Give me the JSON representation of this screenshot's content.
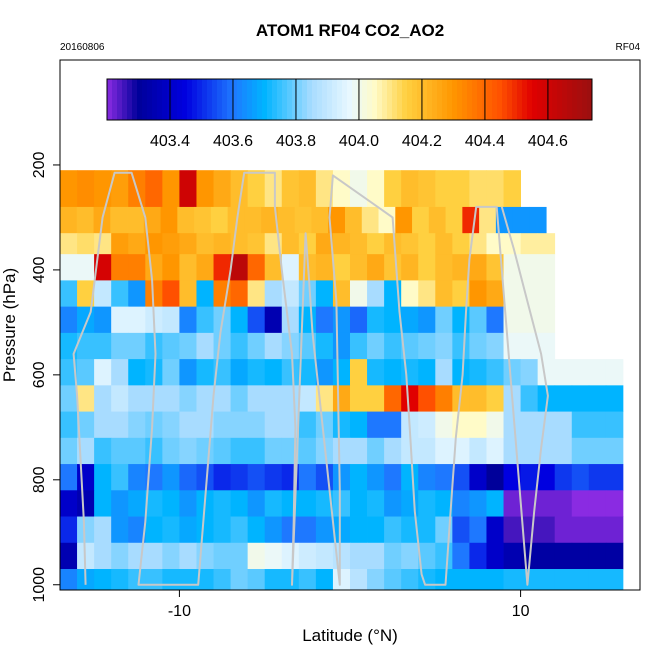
{
  "chart_data": {
    "type": "heatmap",
    "title": "ATOM1 RF04 CO2_AO2",
    "date_label": "20160806",
    "flight_label": "RF04",
    "xlabel": "Latitude (°N)",
    "ylabel": "Pressure (hPa)",
    "xlim": [
      -17,
      17
    ],
    "ylim": [
      1010,
      0
    ],
    "x_ticks": [
      -10,
      10
    ],
    "x_tick_labels": [
      "-10",
      "10"
    ],
    "y_ticks": [
      1000,
      800,
      600,
      400,
      200
    ],
    "y_tick_labels": [
      "1000",
      "800",
      "600",
      "400",
      "200"
    ],
    "colorbar": {
      "range": [
        403.2,
        404.74
      ],
      "ticks": [
        403.4,
        403.6,
        403.8,
        404.0,
        404.2,
        404.4,
        404.6
      ],
      "tick_labels": [
        "403.4",
        "403.6",
        "403.8",
        "404.0",
        "404.2",
        "404.4",
        "404.6"
      ],
      "stops": [
        {
          "v": 403.2,
          "c": "#8a2be2"
        },
        {
          "v": 403.3,
          "c": "#00009a"
        },
        {
          "v": 403.45,
          "c": "#0000e0"
        },
        {
          "v": 403.6,
          "c": "#1e78ff"
        },
        {
          "v": 403.7,
          "c": "#00b4ff"
        },
        {
          "v": 403.85,
          "c": "#a8dcff"
        },
        {
          "v": 403.97,
          "c": "#e8f8ff"
        },
        {
          "v": 404.05,
          "c": "#fffbc8"
        },
        {
          "v": 404.15,
          "c": "#ffd040"
        },
        {
          "v": 404.3,
          "c": "#ff9600"
        },
        {
          "v": 404.45,
          "c": "#ff5000"
        },
        {
          "v": 404.55,
          "c": "#e00000"
        },
        {
          "v": 404.74,
          "c": "#9a1010"
        }
      ]
    },
    "rows": [
      {
        "p0": 210,
        "p1": 280,
        "x0": -17,
        "x1": 10,
        "values": [
          404.3,
          404.32,
          404.3,
          404.28,
          404.35,
          404.4,
          404.3,
          404.6,
          404.3,
          404.25,
          404.2,
          404.15,
          404.1,
          404.18,
          404.2,
          404.1,
          404.05,
          404.0,
          404.05,
          404.15,
          404.2,
          404.18,
          404.15,
          404.15,
          404.12,
          404.12,
          404.15
        ]
      },
      {
        "p0": 280,
        "p1": 330,
        "x0": -17,
        "x1": 11.5,
        "values": [
          404.22,
          404.2,
          404.25,
          404.2,
          404.2,
          404.25,
          404.3,
          404.2,
          404.18,
          404.15,
          404.2,
          404.2,
          404.22,
          404.2,
          404.18,
          404.2,
          404.3,
          404.2,
          404.1,
          404.05,
          404.3,
          404.15,
          404.2,
          404.15,
          404.5,
          404.1,
          403.65,
          403.65,
          403.65
        ]
      },
      {
        "p0": 330,
        "p1": 370,
        "x0": -17,
        "x1": 12,
        "values": [
          404.1,
          404.12,
          404.1,
          404.28,
          404.25,
          404.3,
          404.28,
          404.25,
          404.2,
          404.22,
          404.2,
          404.18,
          404.1,
          404.2,
          404.15,
          404.25,
          404.22,
          404.2,
          404.15,
          404.2,
          404.18,
          404.15,
          404.2,
          404.15,
          404.1,
          404.05,
          404.05,
          404.08,
          404.08
        ]
      },
      {
        "p0": 370,
        "p1": 420,
        "x0": -17,
        "x1": 12,
        "values": [
          403.98,
          403.98,
          404.58,
          404.35,
          404.35,
          404.25,
          404.3,
          404.2,
          404.25,
          404.5,
          404.65,
          404.4,
          404.2,
          403.95,
          404.2,
          404.22,
          404.15,
          404.2,
          404.25,
          404.18,
          404.22,
          404.15,
          404.2,
          404.22,
          404.25,
          404.18,
          404.0,
          404.0,
          404.0
        ]
      },
      {
        "p0": 420,
        "p1": 470,
        "x0": -17,
        "x1": 12,
        "values": [
          403.75,
          404.15,
          403.9,
          403.75,
          403.65,
          404.35,
          404.45,
          404.2,
          403.7,
          404.35,
          404.4,
          404.1,
          403.85,
          403.9,
          403.8,
          403.7,
          404.2,
          404.0,
          403.85,
          403.7,
          404.05,
          404.1,
          404.2,
          404.15,
          404.3,
          404.25,
          404.0,
          404.0,
          404.0
        ]
      },
      {
        "p0": 470,
        "p1": 520,
        "x0": -17,
        "x1": 12,
        "values": [
          403.62,
          403.68,
          403.65,
          403.95,
          403.95,
          403.92,
          403.9,
          403.62,
          403.75,
          403.8,
          403.7,
          403.55,
          403.35,
          403.85,
          403.7,
          403.6,
          403.65,
          403.58,
          403.72,
          403.7,
          403.68,
          403.65,
          403.8,
          403.7,
          403.78,
          403.6,
          404.0,
          404.0,
          404.0
        ]
      },
      {
        "p0": 520,
        "p1": 570,
        "x0": -17,
        "x1": 12,
        "values": [
          403.72,
          403.75,
          403.75,
          403.8,
          403.8,
          403.75,
          403.78,
          403.8,
          403.85,
          403.8,
          403.75,
          403.8,
          403.85,
          403.82,
          403.78,
          403.72,
          403.65,
          403.75,
          403.8,
          403.75,
          403.78,
          403.8,
          403.82,
          403.75,
          403.8,
          403.82,
          403.98,
          403.98,
          403.98
        ]
      },
      {
        "p0": 570,
        "p1": 620,
        "x0": -17,
        "x1": 16,
        "values": [
          403.75,
          403.78,
          403.95,
          403.85,
          403.7,
          403.72,
          403.8,
          403.65,
          403.72,
          403.75,
          403.68,
          403.72,
          403.7,
          403.75,
          403.72,
          403.65,
          403.7,
          404.15,
          403.72,
          403.7,
          403.72,
          403.7,
          403.85,
          403.7,
          403.72,
          403.75,
          403.8,
          403.82,
          403.98,
          403.98,
          403.98,
          403.98,
          403.98
        ]
      },
      {
        "p0": 620,
        "p1": 670,
        "x0": -17,
        "x1": 16,
        "values": [
          403.8,
          404.1,
          403.85,
          403.9,
          403.85,
          403.85,
          403.85,
          403.82,
          403.85,
          403.85,
          403.8,
          403.85,
          403.85,
          403.85,
          403.9,
          404.1,
          404.25,
          404.15,
          404.15,
          404.4,
          404.55,
          404.45,
          404.35,
          404.2,
          404.2,
          404.15,
          403.85,
          403.75,
          403.7,
          403.7,
          403.7,
          403.7,
          403.7
        ]
      },
      {
        "p0": 670,
        "p1": 720,
        "x0": -17,
        "x1": 16,
        "values": [
          403.75,
          403.8,
          403.85,
          403.85,
          403.82,
          403.8,
          403.82,
          403.85,
          403.85,
          403.82,
          403.82,
          403.82,
          403.85,
          403.85,
          403.75,
          403.8,
          403.72,
          403.7,
          403.6,
          403.6,
          403.9,
          403.92,
          404.0,
          404.05,
          404.05,
          404.0,
          403.85,
          403.85,
          403.85,
          403.85,
          403.75,
          403.75,
          403.75
        ]
      },
      {
        "p0": 720,
        "p1": 770,
        "x0": -17,
        "x1": 16,
        "values": [
          403.8,
          403.85,
          403.75,
          403.78,
          403.78,
          403.75,
          403.8,
          403.82,
          403.8,
          403.78,
          403.75,
          403.75,
          403.8,
          403.8,
          403.78,
          403.82,
          403.85,
          403.85,
          403.8,
          403.85,
          403.9,
          403.9,
          403.95,
          403.95,
          403.9,
          403.95,
          403.85,
          403.85,
          403.85,
          403.85,
          403.8,
          403.8,
          403.8
        ]
      },
      {
        "p0": 770,
        "p1": 820,
        "x0": -17,
        "x1": 16,
        "values": [
          403.6,
          403.4,
          403.7,
          403.75,
          403.62,
          403.6,
          403.65,
          403.58,
          403.55,
          403.5,
          403.52,
          403.55,
          403.52,
          403.5,
          403.6,
          403.55,
          403.65,
          403.7,
          403.65,
          403.6,
          403.7,
          403.62,
          403.6,
          403.55,
          403.4,
          403.3,
          403.45,
          403.48,
          403.45,
          403.52,
          403.55,
          403.52,
          403.52
        ]
      },
      {
        "p0": 820,
        "p1": 870,
        "x0": -17,
        "x1": 16,
        "values": [
          403.4,
          403.35,
          403.7,
          403.65,
          403.68,
          403.72,
          403.7,
          403.65,
          403.7,
          403.72,
          403.7,
          403.65,
          403.72,
          403.7,
          403.7,
          403.72,
          403.75,
          403.7,
          403.72,
          403.65,
          403.68,
          403.72,
          403.7,
          403.62,
          403.65,
          403.7,
          403.22,
          403.22,
          403.22,
          403.22,
          403.2,
          403.2,
          403.2
        ]
      },
      {
        "p0": 870,
        "p1": 920,
        "x0": -17,
        "x1": 16,
        "values": [
          403.5,
          403.82,
          403.85,
          403.65,
          403.62,
          403.7,
          403.72,
          403.68,
          403.7,
          403.72,
          403.75,
          403.7,
          403.65,
          403.6,
          403.6,
          403.65,
          403.68,
          403.7,
          403.7,
          403.75,
          403.72,
          403.72,
          403.8,
          403.55,
          403.6,
          403.4,
          403.25,
          403.25,
          403.25,
          403.22,
          403.22,
          403.22,
          403.22
        ]
      },
      {
        "p0": 920,
        "p1": 970,
        "x0": -17,
        "x1": 16,
        "values": [
          403.35,
          403.9,
          403.85,
          403.82,
          403.85,
          403.85,
          403.82,
          403.85,
          403.82,
          403.8,
          403.8,
          404.0,
          403.98,
          403.95,
          403.92,
          403.9,
          403.88,
          403.85,
          403.85,
          403.8,
          403.82,
          403.78,
          403.75,
          403.6,
          403.5,
          403.4,
          403.35,
          403.32,
          403.32,
          403.32,
          403.32,
          403.32,
          403.32
        ]
      },
      {
        "p0": 970,
        "p1": 1010,
        "x0": -17,
        "x1": 16,
        "values": [
          403.62,
          403.68,
          403.7,
          403.72,
          403.75,
          403.75,
          403.72,
          403.72,
          403.72,
          403.75,
          403.8,
          403.78,
          403.72,
          403.72,
          403.75,
          403.7,
          403.95,
          403.88,
          403.82,
          403.78,
          403.75,
          403.72,
          403.7,
          403.7,
          403.7,
          403.7,
          403.72,
          403.72,
          403.72,
          403.72,
          403.72,
          403.72,
          403.72
        ]
      }
    ],
    "flight_track": [
      [
        -15.5,
        1000
      ],
      [
        -15.6,
        880
      ],
      [
        -15.8,
        760
      ],
      [
        -16.0,
        640
      ],
      [
        -16.2,
        560
      ],
      [
        -15.2,
        480
      ],
      [
        -14.5,
        300
      ],
      [
        -13.8,
        215
      ],
      [
        -12.8,
        215
      ],
      [
        -12.0,
        300
      ],
      [
        -11.6,
        420
      ],
      [
        -11.4,
        560
      ],
      [
        -11.6,
        700
      ],
      [
        -12.0,
        880
      ],
      [
        -12.4,
        1000
      ],
      [
        -8.9,
        1000
      ],
      [
        -8.6,
        880
      ],
      [
        -8.3,
        760
      ],
      [
        -8.0,
        640
      ],
      [
        -7.6,
        520
      ],
      [
        -7.0,
        400
      ],
      [
        -6.6,
        300
      ],
      [
        -6.2,
        215
      ],
      [
        -4.4,
        215
      ],
      [
        -4.4,
        280
      ],
      [
        -4.0,
        400
      ],
      [
        -3.4,
        560
      ],
      [
        -3.2,
        700
      ],
      [
        -3.3,
        880
      ],
      [
        -3.4,
        1000
      ],
      [
        -2.6,
        330
      ],
      [
        -2.4,
        420
      ],
      [
        -2.2,
        520
      ],
      [
        -0.6,
        1000
      ],
      [
        -0.6,
        820
      ],
      [
        -0.7,
        640
      ],
      [
        -0.8,
        460
      ],
      [
        -1.2,
        300
      ],
      [
        -1.0,
        220
      ],
      [
        2.5,
        300
      ],
      [
        2.9,
        480
      ],
      [
        3.3,
        600
      ],
      [
        3.5,
        700
      ],
      [
        3.8,
        860
      ],
      [
        4.2,
        980
      ],
      [
        4.4,
        1000
      ],
      [
        5.6,
        1000
      ],
      [
        5.9,
        860
      ],
      [
        6.2,
        720
      ],
      [
        6.6,
        600
      ],
      [
        6.8,
        480
      ],
      [
        7.0,
        380
      ],
      [
        7.4,
        280
      ],
      [
        8.6,
        280
      ],
      [
        10.4,
        1000
      ],
      [
        10.8,
        860
      ],
      [
        11.2,
        740
      ],
      [
        11.6,
        640
      ],
      [
        11.2,
        560
      ],
      [
        10.4,
        460
      ],
      [
        9.6,
        360
      ],
      [
        8.9,
        280
      ]
    ]
  }
}
